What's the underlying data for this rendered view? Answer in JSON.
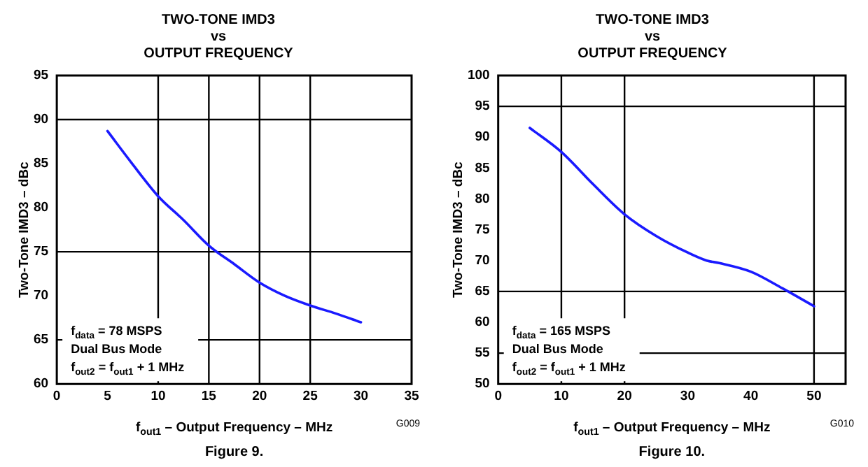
{
  "chart_data": [
    {
      "type": "line",
      "title": "TWO-TONE IMD3\nvs\nOUTPUT FREQUENCY",
      "xlabel": "f$_{out1}$ – Output Frequency – MHz",
      "ylabel": "Two-Tone IMD3 – dBc",
      "x": [
        5,
        7.5,
        10,
        12.5,
        15,
        17.5,
        20,
        22.5,
        25,
        27.5,
        30
      ],
      "series": [
        {
          "color": "#1a1aff",
          "values": [
            88.7,
            84.9,
            81.3,
            78.6,
            75.7,
            73.6,
            71.5,
            70.0,
            68.9,
            68.0,
            67.0
          ]
        }
      ],
      "xlim": [
        0,
        35
      ],
      "xticks": [
        0,
        5,
        10,
        15,
        20,
        25,
        30,
        35
      ],
      "ylim": [
        60,
        95
      ],
      "yticks": [
        60,
        65,
        70,
        75,
        80,
        85,
        90,
        95
      ],
      "ref_lines": [
        {
          "axis": "x",
          "value": 10,
          "color": "#000000"
        },
        {
          "axis": "x",
          "value": 15,
          "color": "#000000"
        },
        {
          "axis": "x",
          "value": 20,
          "color": "#000000"
        },
        {
          "axis": "x",
          "value": 25,
          "color": "#000000"
        },
        {
          "axis": "y",
          "value": 90,
          "color": "#000000"
        },
        {
          "axis": "y",
          "value": 75,
          "color": "#000000"
        },
        {
          "axis": "y",
          "value": 65,
          "color": "#000000"
        }
      ],
      "annotations": [
        "f$_{data}$ = 78 MSPS",
        "Dual Bus Mode",
        "f$_{out2}$ = f$_{out1}$ + 1 MHz",
        "Figure 9.",
        "G009"
      ],
      "legend": false,
      "marker": "none",
      "line_style": "solid",
      "grid": false
    },
    {
      "type": "line",
      "title": "TWO-TONE IMD3\nvs\nOUTPUT FREQUENCY",
      "xlabel": "f$_{out1}$ – Output Frequency – MHz",
      "ylabel": "Two-Tone IMD3 – dBc",
      "x": [
        5,
        10,
        15,
        20,
        25,
        30,
        33,
        35,
        40,
        45,
        50
      ],
      "series": [
        {
          "color": "#1a1aff",
          "values": [
            91.5,
            87.6,
            82.4,
            77.5,
            74.0,
            71.3,
            70.0,
            69.6,
            68.2,
            65.5,
            62.6
          ]
        }
      ],
      "xlim": [
        0,
        55
      ],
      "xticks": [
        0,
        10,
        20,
        30,
        40,
        50
      ],
      "ylim": [
        50,
        100
      ],
      "yticks": [
        50,
        55,
        60,
        65,
        70,
        75,
        80,
        85,
        90,
        95,
        100
      ],
      "ref_lines": [
        {
          "axis": "x",
          "value": 10,
          "color": "#000000"
        },
        {
          "axis": "x",
          "value": 20,
          "color": "#000000"
        },
        {
          "axis": "x",
          "value": 50,
          "color": "#000000"
        },
        {
          "axis": "y",
          "value": 95,
          "color": "#000000"
        },
        {
          "axis": "y",
          "value": 65,
          "color": "#000000"
        },
        {
          "axis": "y",
          "value": 55,
          "color": "#000000"
        }
      ],
      "annotations": [
        "f$_{data}$ = 165 MSPS",
        "Dual Bus Mode",
        "f$_{out2}$ = f$_{out1}$ + 1 MHz",
        "Figure 10.",
        "G010"
      ],
      "legend": false,
      "marker": "none",
      "line_style": "solid",
      "grid": false
    }
  ]
}
